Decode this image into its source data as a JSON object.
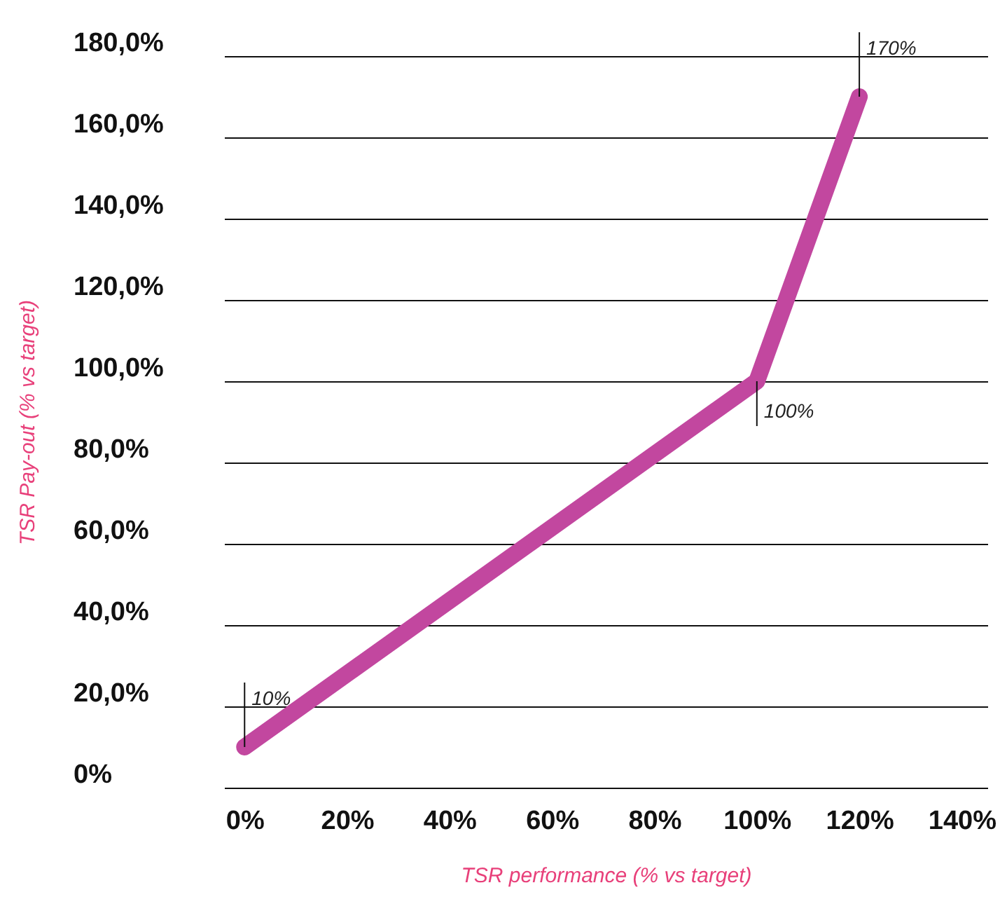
{
  "chart_data": {
    "type": "line",
    "xlabel": "TSR performance (% vs target)",
    "ylabel": "TSR Pay-out (% vs target)",
    "x": [
      0,
      100,
      120
    ],
    "series": [
      {
        "color": "#c2479f",
        "values": [
          10,
          100,
          170
        ],
        "value_labels": [
          "10%",
          "100%",
          "170%"
        ]
      }
    ],
    "xlim": [
      -4,
      145
    ],
    "xticks": [
      {
        "value": 0,
        "label": "0%"
      },
      {
        "value": 20,
        "label": "20%"
      },
      {
        "value": 40,
        "label": "40%"
      },
      {
        "value": 60,
        "label": "60%"
      },
      {
        "value": 80,
        "label": "80%"
      },
      {
        "value": 100,
        "label": "100%"
      },
      {
        "value": 120,
        "label": "120%"
      },
      {
        "value": 140,
        "label": "140%"
      }
    ],
    "ylim": [
      0,
      180
    ],
    "yticks": [
      {
        "value": 0,
        "label": "0%"
      },
      {
        "value": 20,
        "label": "20,0%"
      },
      {
        "value": 40,
        "label": "40,0%"
      },
      {
        "value": 60,
        "label": "60,0%"
      },
      {
        "value": 80,
        "label": "80,0%"
      },
      {
        "value": 100,
        "label": "100,0%"
      },
      {
        "value": 120,
        "label": "120,0%"
      },
      {
        "value": 140,
        "label": "140,0%"
      },
      {
        "value": 160,
        "label": "160,0%"
      },
      {
        "value": 180,
        "label": "180,0%"
      }
    ],
    "grid": "y",
    "line_style": "solid"
  }
}
